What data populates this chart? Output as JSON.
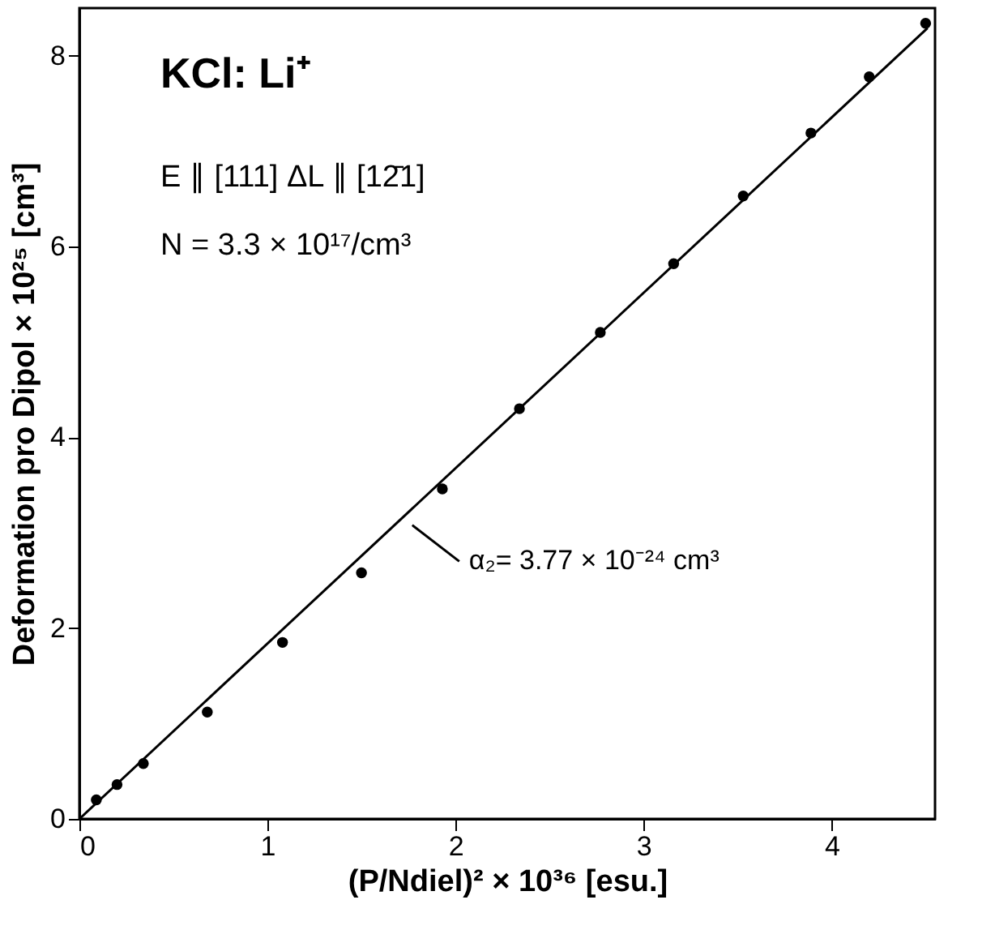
{
  "chart_data": {
    "type": "scatter",
    "xlabel": "(P/Ndiel)² × 10³⁶ [esu.]",
    "ylabel": "Deformation pro Dipol × 10²⁵ [cm³]",
    "xlim": [
      0,
      4.55
    ],
    "ylim": [
      0,
      8.5
    ],
    "xticks": [
      0,
      1,
      2,
      3,
      4
    ],
    "yticks": [
      0,
      2,
      4,
      6,
      8
    ],
    "grid": false,
    "series": [
      {
        "marker": "circle",
        "color": "#000000",
        "x": [
          0.09,
          0.2,
          0.34,
          0.68,
          1.08,
          1.5,
          1.93,
          2.34,
          2.77,
          3.16,
          3.53,
          3.89,
          4.2,
          4.5
        ],
        "values": [
          0.2,
          0.36,
          0.58,
          1.12,
          1.85,
          2.58,
          3.46,
          4.3,
          5.1,
          5.82,
          6.53,
          7.19,
          7.78,
          8.34
        ]
      },
      {
        "type": "line",
        "marker": "none",
        "line_style": "solid",
        "color": "#000000",
        "x": [
          0,
          4.51
        ],
        "values": [
          0,
          8.29
        ]
      }
    ],
    "annotations": [
      "KCl: Li⁺",
      "E ∥ [111]    ΔL ∥ [12̄1]",
      "N = 3.3 × 10¹⁷/cm³",
      {
        "text": "α₂= 3.77 × 10⁻²⁴ cm³",
        "x": 1.74,
        "y": 3.12
      }
    ]
  }
}
